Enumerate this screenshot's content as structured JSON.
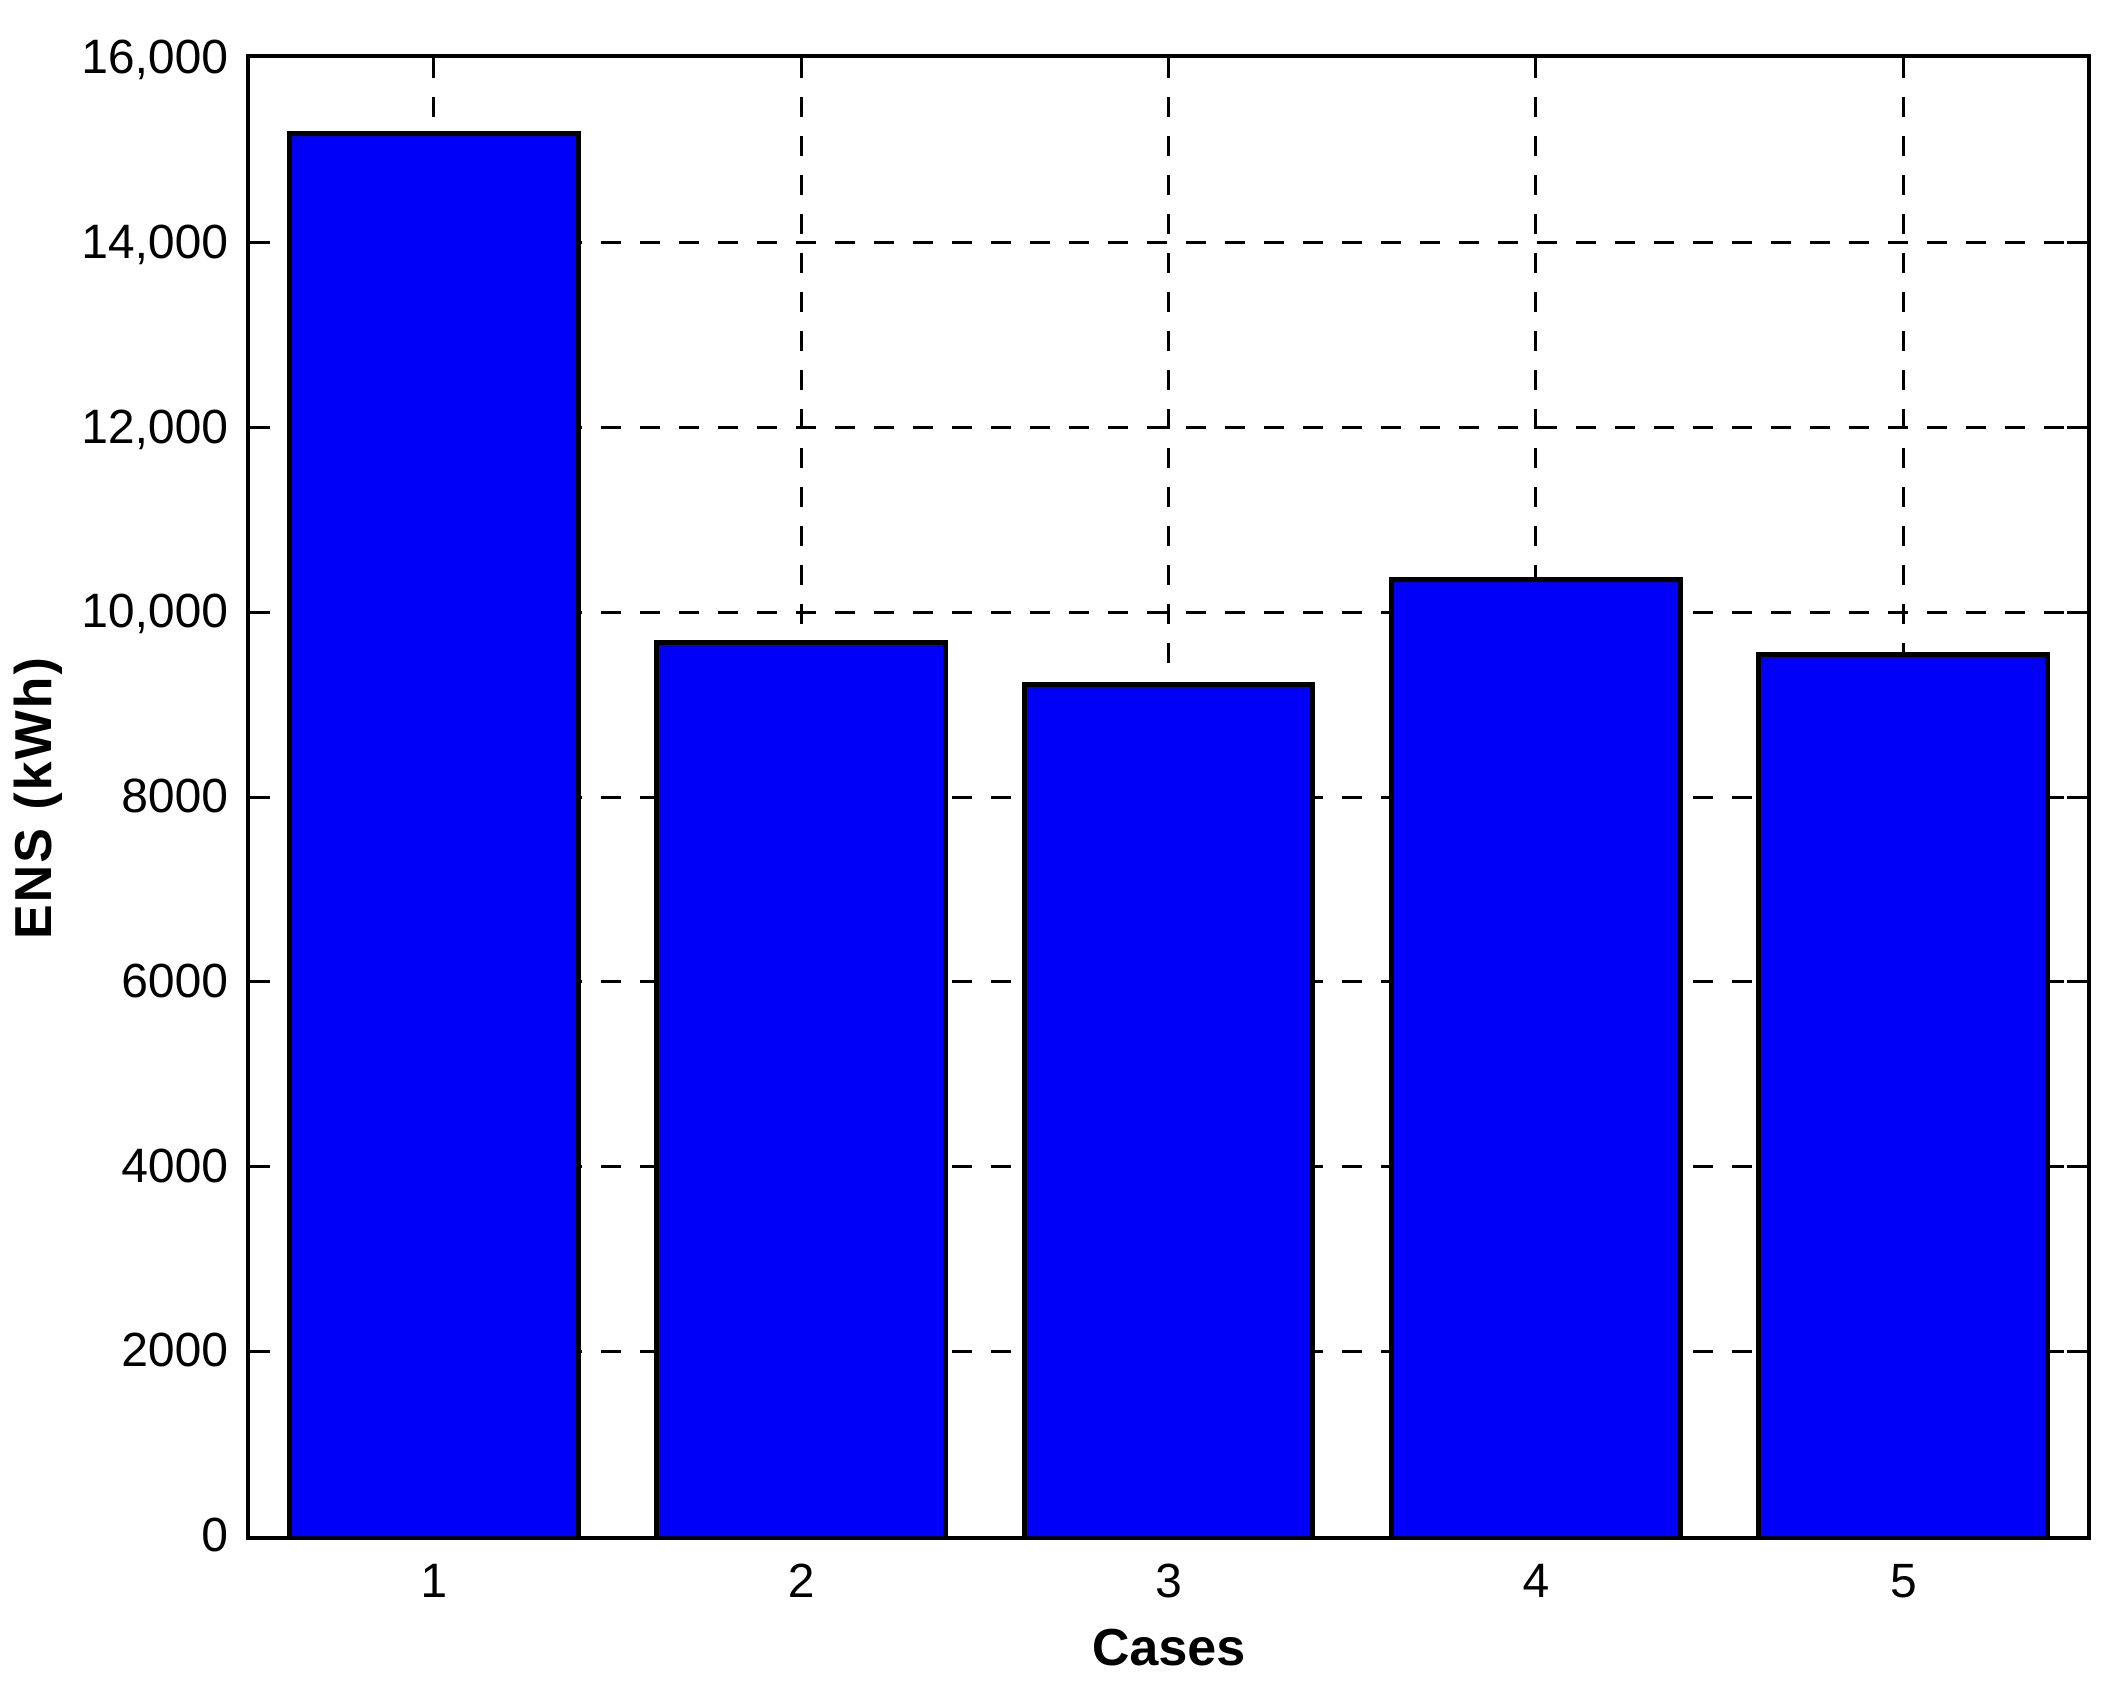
{
  "chart_data": {
    "type": "bar",
    "title": "",
    "xlabel": "Cases",
    "ylabel": "ENS (kWh)",
    "categories": [
      "1",
      "2",
      "3",
      "4",
      "5"
    ],
    "values": [
      15210,
      9700,
      9250,
      10380,
      9570
    ],
    "series_name": "ENS",
    "ylim": [
      0,
      16000
    ],
    "ytick_interval": 2000,
    "ytick_labels": [
      "0",
      "2000",
      "4000",
      "6000",
      "8000",
      "10,000",
      "12,000",
      "14,000",
      "16,000"
    ],
    "xlim": [
      0.5,
      5.5
    ],
    "bar_width_fraction": 0.8,
    "grid": "dashed",
    "legend_position": "none",
    "colors": {
      "bar_fill": "#0000FA",
      "bar_edge": "#000000",
      "axis": "#000000",
      "grid": "#000000",
      "background": "#FFFFFF",
      "text": "#000000"
    }
  }
}
